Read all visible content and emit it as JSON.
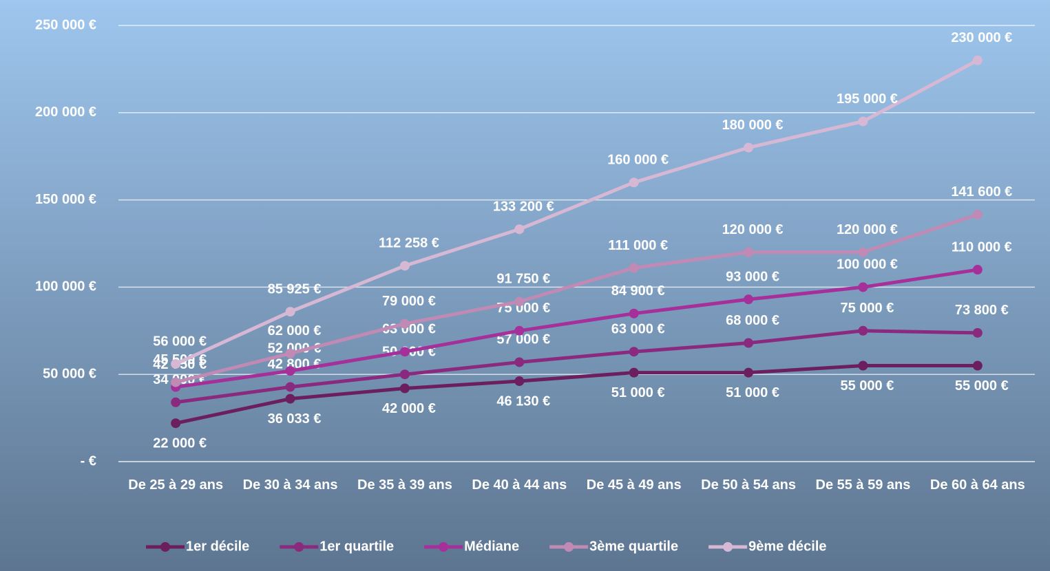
{
  "chart_data": {
    "type": "line",
    "categories": [
      "De 25 à 29 ans",
      "De 30 à 34 ans",
      "De 35 à 39 ans",
      "De 40 à 44 ans",
      "De 45 à 49 ans",
      "De 50 à 54 ans",
      "De 55 à 59 ans",
      "De 60 à 64 ans"
    ],
    "ylim": [
      0,
      250000
    ],
    "yticks": [
      {
        "value": 0,
        "label": "-  €"
      },
      {
        "value": 50000,
        "label": "50 000 €"
      },
      {
        "value": 100000,
        "label": "100 000 €"
      },
      {
        "value": 150000,
        "label": "150 000 €"
      },
      {
        "value": 200000,
        "label": "200 000 €"
      },
      {
        "value": 250000,
        "label": "250 000 €"
      }
    ],
    "grid": true,
    "legend": "bottom",
    "series": [
      {
        "name": "1er décile",
        "color": "#6b1f5e",
        "values": [
          22000,
          36033,
          42000,
          46130,
          51000,
          51000,
          55000,
          55000
        ],
        "value_labels": [
          "22 000 €",
          "36 033 €",
          "42 000 €",
          "46 130 €",
          "51 000 €",
          "51 000 €",
          "55 000 €",
          "55 000 €"
        ]
      },
      {
        "name": "1er quartile",
        "color": "#8a2a7e",
        "values": [
          34000,
          42800,
          50000,
          57000,
          63000,
          68000,
          75000,
          73800
        ],
        "value_labels": [
          "34 000 €",
          "42 800 €",
          "50 000 €",
          "57 000 €",
          "63 000 €",
          "68 000 €",
          "75 000 €",
          "73 800 €"
        ]
      },
      {
        "name": "Médiane",
        "color": "#a6309a",
        "values": [
          42750,
          52000,
          63000,
          75000,
          84900,
          93000,
          100000,
          110000
        ],
        "value_labels": [
          "42 750 €",
          "52 000 €",
          "63 000 €",
          "75 000 €",
          "84 900 €",
          "93 000 €",
          "100 000 €",
          "110 000 €"
        ]
      },
      {
        "name": "3ème quartile",
        "color": "#c08ab5",
        "values": [
          45500,
          62000,
          79000,
          91750,
          111000,
          120000,
          120000,
          141600
        ],
        "value_labels": [
          "45 500 €",
          "62 000 €",
          "79 000 €",
          "91 750 €",
          "111 000 €",
          "120 000 €",
          "120 000 €",
          "141 600 €"
        ]
      },
      {
        "name": "9ème décile",
        "color": "#d6b8d4",
        "values": [
          56000,
          85925,
          112258,
          133200,
          160000,
          180000,
          195000,
          230000
        ],
        "value_labels": [
          "56 000 €",
          "85 925 €",
          "112 258 €",
          "133 200 €",
          "160 000 €",
          "180 000 €",
          "195 000 €",
          "230 000 €"
        ]
      }
    ]
  }
}
